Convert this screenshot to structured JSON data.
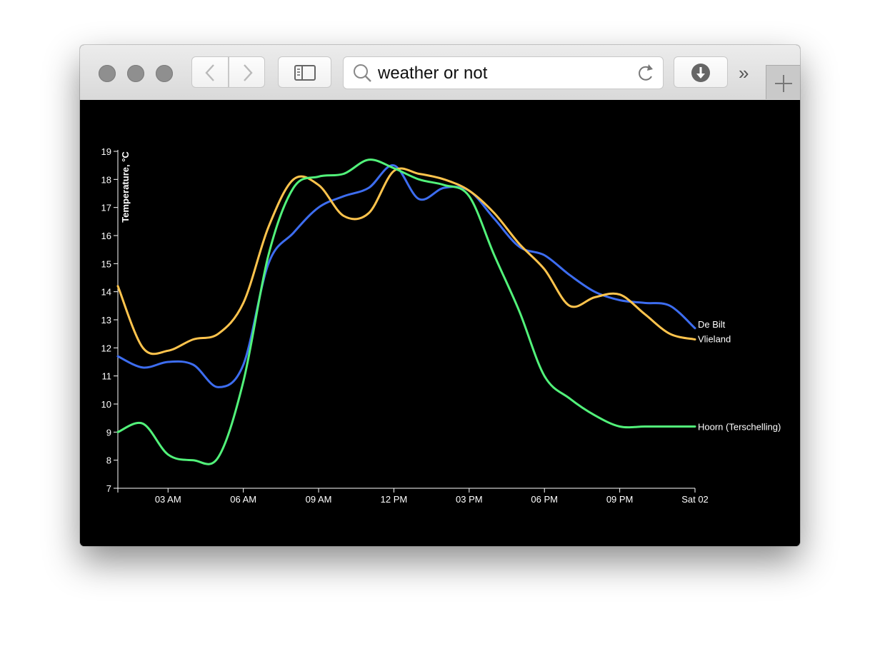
{
  "browser": {
    "address_text": "weather or not",
    "overflow_label": "»",
    "icons": [
      "back-chevron-icon",
      "forward-chevron-icon",
      "sidebar-icon",
      "search-icon",
      "reload-icon",
      "download-icon",
      "new-tab-plus-icon"
    ]
  },
  "chart_data": {
    "type": "line",
    "ylabel": "Temperature, °C",
    "ylim": [
      7,
      19
    ],
    "y_ticks": [
      7,
      8,
      9,
      10,
      11,
      12,
      13,
      14,
      15,
      16,
      17,
      18,
      19
    ],
    "x_unit": "hours since midnight",
    "xlim": [
      0,
      23
    ],
    "x_ticks": [
      {
        "x": 2,
        "label": "03 AM"
      },
      {
        "x": 5,
        "label": "06 AM"
      },
      {
        "x": 8,
        "label": "09 AM"
      },
      {
        "x": 11,
        "label": "12 PM"
      },
      {
        "x": 14,
        "label": "03 PM"
      },
      {
        "x": 17,
        "label": "06 PM"
      },
      {
        "x": 20,
        "label": "09 PM"
      },
      {
        "x": 23,
        "label": "Sat 02"
      }
    ],
    "x": [
      0,
      1,
      2,
      3,
      4,
      5,
      6,
      7,
      8,
      9,
      10,
      11,
      12,
      13,
      14,
      15,
      16,
      17,
      18,
      19,
      20,
      21,
      22,
      23
    ],
    "series": [
      {
        "name": "De Bilt",
        "color": "#3d6df0",
        "values": [
          11.7,
          11.3,
          11.5,
          11.4,
          10.6,
          11.4,
          15.0,
          16.1,
          17.0,
          17.4,
          17.7,
          18.5,
          17.3,
          17.7,
          17.6,
          16.6,
          15.6,
          15.3,
          14.6,
          14.0,
          13.7,
          13.6,
          13.5,
          12.7
        ]
      },
      {
        "name": "Vlieland",
        "color": "#ffc44d",
        "values": [
          14.2,
          12.0,
          11.9,
          12.3,
          12.5,
          13.6,
          16.3,
          18.0,
          17.8,
          16.7,
          16.8,
          18.3,
          18.2,
          18.0,
          17.6,
          16.8,
          15.7,
          14.8,
          13.5,
          13.8,
          13.9,
          13.2,
          12.5,
          12.3
        ]
      },
      {
        "name": "Hoorn (Terschelling)",
        "color": "#52f27a",
        "values": [
          9.0,
          9.3,
          8.2,
          8.0,
          8.1,
          10.8,
          15.3,
          17.7,
          18.1,
          18.2,
          18.7,
          18.4,
          18.0,
          17.8,
          17.4,
          15.3,
          13.3,
          11.0,
          10.2,
          9.6,
          9.2,
          9.2,
          9.2,
          9.2
        ]
      }
    ],
    "grid": false,
    "legend": "end-of-line labels"
  }
}
